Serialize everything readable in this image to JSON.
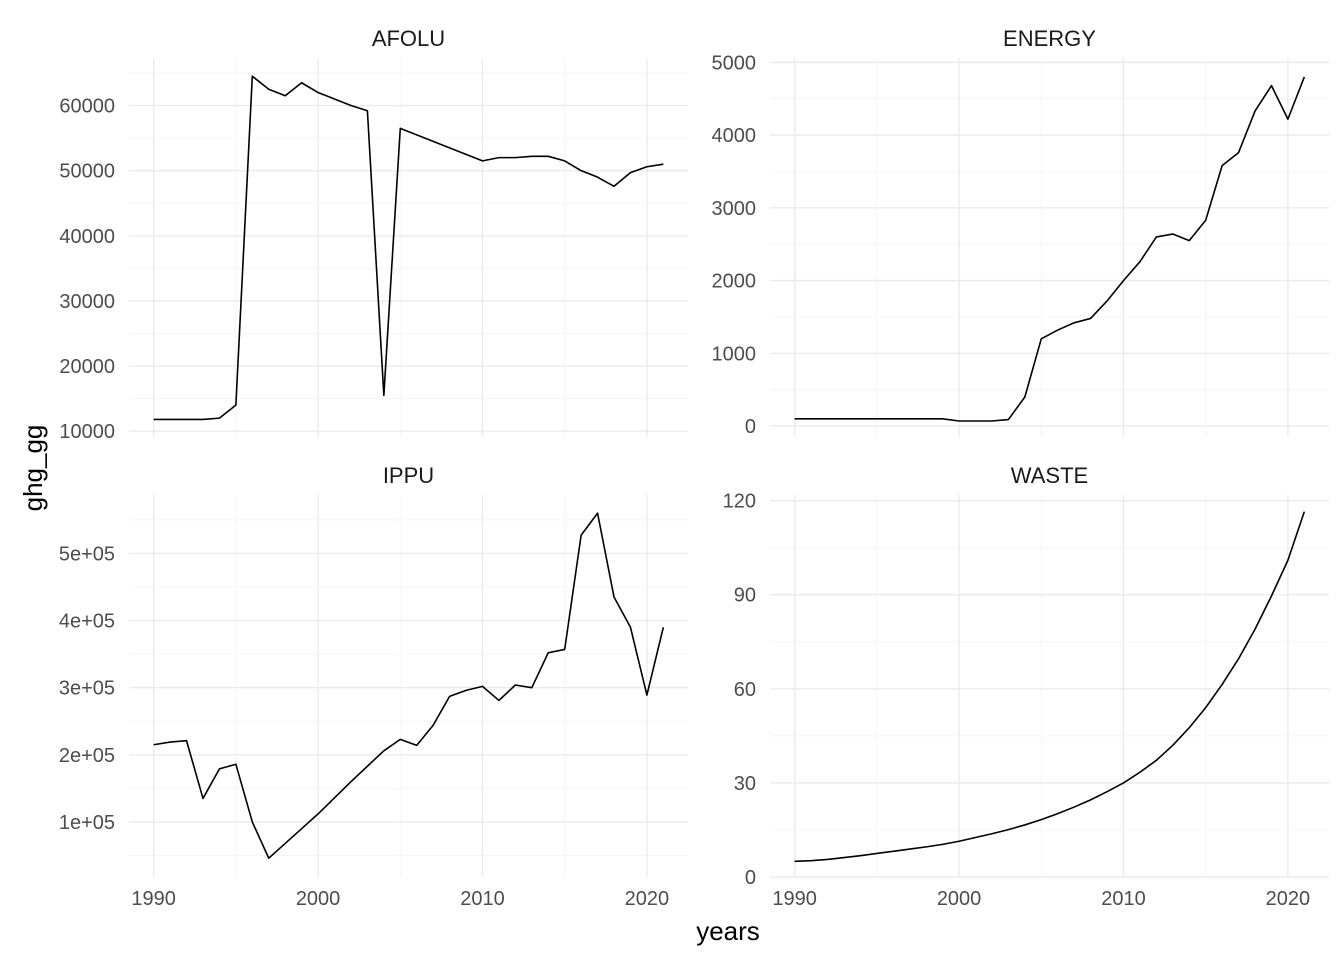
{
  "chart_data": {
    "type": "line",
    "facet": "wrap 2x2",
    "xlabel": "years",
    "ylabel": "ghg_gg",
    "scales": "free_y",
    "grid": true,
    "xlim": [
      1988.5,
      2022.5
    ],
    "x_ticks": [
      1990,
      2000,
      2010,
      2020
    ],
    "x_tick_labels": [
      "1990",
      "2000",
      "2010",
      "2020"
    ],
    "panels": [
      {
        "title": "AFOLU",
        "x": [
          1990,
          1991,
          1992,
          1993,
          1994,
          1995,
          1996,
          1997,
          1998,
          1999,
          2000,
          2001,
          2002,
          2003,
          2004,
          2005,
          2006,
          2007,
          2008,
          2009,
          2010,
          2011,
          2012,
          2013,
          2014,
          2015,
          2016,
          2017,
          2018,
          2019,
          2020,
          2021
        ],
        "y": [
          11800,
          11800,
          11800,
          11800,
          12000,
          14000,
          64500,
          62500,
          61500,
          63500,
          62000,
          61000,
          60000,
          59200,
          15500,
          56500,
          55500,
          54500,
          53500,
          52500,
          51500,
          52000,
          52000,
          52200,
          52200,
          51500,
          50000,
          49000,
          47600,
          49700,
          50600,
          51000
        ],
        "ylim": [
          9100,
          67300
        ],
        "y_ticks": [
          10000,
          20000,
          30000,
          40000,
          50000,
          60000
        ],
        "y_tick_labels": [
          "10000",
          "20000",
          "30000",
          "40000",
          "50000",
          "60000"
        ]
      },
      {
        "title": "ENERGY",
        "x": [
          1990,
          1991,
          1992,
          1993,
          1994,
          1995,
          1996,
          1997,
          1998,
          1999,
          2000,
          2001,
          2002,
          2003,
          2004,
          2005,
          2006,
          2007,
          2008,
          2009,
          2010,
          2011,
          2012,
          2013,
          2014,
          2015,
          2016,
          2017,
          2018,
          2019,
          2020,
          2021
        ],
        "y": [
          100,
          100,
          100,
          100,
          100,
          100,
          100,
          100,
          100,
          100,
          70,
          70,
          70,
          90,
          400,
          1200,
          1320,
          1420,
          1480,
          1720,
          2000,
          2260,
          2600,
          2640,
          2550,
          2830,
          3580,
          3760,
          4330,
          4680,
          4220,
          4800
        ],
        "ylim": [
          -150,
          5060
        ],
        "y_ticks": [
          0,
          1000,
          2000,
          3000,
          4000,
          5000
        ],
        "y_tick_labels": [
          "0",
          "1000",
          "2000",
          "3000",
          "4000",
          "5000"
        ]
      },
      {
        "title": "IPPU",
        "x": [
          1990,
          1991,
          1992,
          1993,
          1994,
          1995,
          1996,
          1997,
          1998,
          1999,
          2000,
          2001,
          2002,
          2003,
          2004,
          2005,
          2006,
          2007,
          2008,
          2009,
          2010,
          2011,
          2012,
          2013,
          2014,
          2015,
          2016,
          2017,
          2018,
          2019,
          2020,
          2021
        ],
        "y": [
          215000,
          219000,
          221000,
          135000,
          179000,
          186000,
          100000,
          46000,
          68000,
          90000,
          112000,
          136000,
          160000,
          183000,
          206000,
          223000,
          214000,
          244000,
          287000,
          296000,
          302000,
          281000,
          304000,
          300000,
          352000,
          357000,
          527000,
          560000,
          435000,
          390000,
          289000,
          390000
        ],
        "ylim": [
          18000,
          587000
        ],
        "y_ticks": [
          100000,
          200000,
          300000,
          400000,
          500000
        ],
        "y_tick_labels": [
          "1e+05",
          "2e+05",
          "3e+05",
          "4e+05",
          "5e+05"
        ]
      },
      {
        "title": "WASTE",
        "x": [
          1990,
          1991,
          1992,
          1993,
          1994,
          1995,
          1996,
          1997,
          1998,
          1999,
          2000,
          2001,
          2002,
          2003,
          2004,
          2005,
          2006,
          2007,
          2008,
          2009,
          2010,
          2011,
          2012,
          2013,
          2014,
          2015,
          2016,
          2017,
          2018,
          2019,
          2020,
          2021
        ],
        "y": [
          5,
          5.2,
          5.6,
          6.2,
          6.8,
          7.5,
          8.2,
          8.9,
          9.6,
          10.4,
          11.4,
          12.6,
          13.8,
          15.1,
          16.6,
          18.3,
          20.2,
          22.3,
          24.6,
          27.2,
          30,
          33.4,
          37.2,
          42,
          47.6,
          54,
          61.4,
          69.6,
          79,
          89.6,
          101,
          116.5
        ],
        "ylim": [
          0,
          121.8
        ],
        "y_ticks": [
          0,
          30,
          60,
          90,
          120
        ],
        "y_tick_labels": [
          "0",
          "30",
          "60",
          "90",
          "120"
        ]
      }
    ]
  }
}
